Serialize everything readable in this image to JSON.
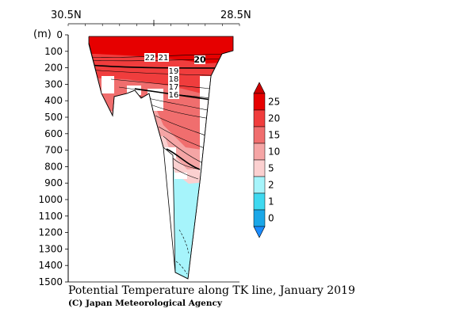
{
  "top_labels": [
    "30.5N",
    "28.5N"
  ],
  "unit": "(m)",
  "title": "Potential Temperature along TK line, January 2019",
  "credit": "(C) Japan Meteorological Agency",
  "colors": {
    "c25": "#e60000",
    "c20": "#f03d3d",
    "c15": "#f06e6e",
    "c10": "#f5a5a5",
    "c5": "#fbd0d0",
    "c2": "#a6f4fb",
    "c1": "#3fd9f0",
    "c0": "#1aa7e8",
    "bottom": "#1a8cff"
  },
  "chart_data": {
    "type": "heatmap",
    "title": "Potential Temperature along TK line, January 2019",
    "x_ticks": [
      "30.5N",
      "28.5N"
    ],
    "y_unit": "(m)",
    "ylim": [
      0,
      1500
    ],
    "y_ticks": [
      0,
      100,
      200,
      300,
      400,
      500,
      600,
      700,
      800,
      900,
      1000,
      1100,
      1200,
      1300,
      1400,
      1500
    ],
    "colorbar_levels": [
      25,
      20,
      15,
      10,
      5,
      2,
      1,
      0
    ],
    "contour_labels": [
      "22",
      "21",
      "20",
      "19",
      "18",
      "17",
      "16"
    ]
  }
}
